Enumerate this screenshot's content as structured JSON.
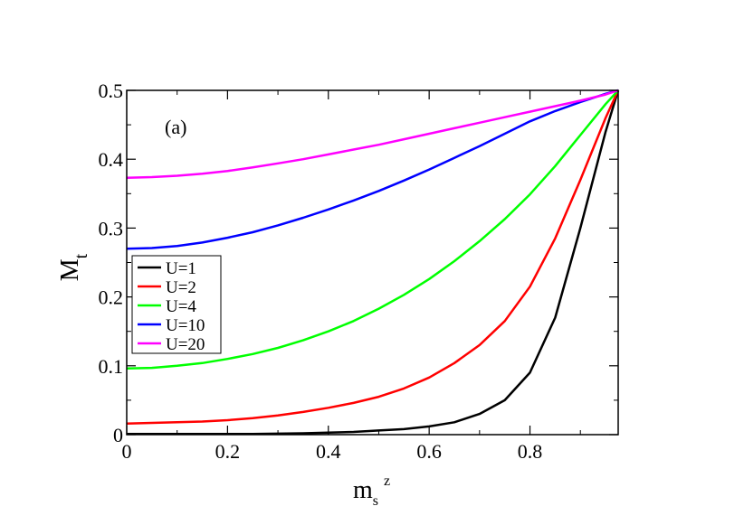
{
  "chart_data": {
    "type": "line",
    "annotation": "(a)",
    "xlabel": {
      "main": "m",
      "sub": "s",
      "sup": "z"
    },
    "ylabel": {
      "main": "M",
      "sub": "t"
    },
    "xlim": [
      0,
      0.975
    ],
    "ylim": [
      0,
      0.5
    ],
    "xticks": [
      0,
      0.2,
      0.4,
      0.6,
      0.8
    ],
    "xtick_labels": [
      "0",
      "0.2",
      "0.4",
      "0.6",
      "0.8"
    ],
    "yticks": [
      0,
      0.1,
      0.2,
      0.3,
      0.4,
      0.5
    ],
    "ytick_labels": [
      "0",
      "0.1",
      "0.2",
      "0.3",
      "0.4",
      "0.5"
    ],
    "grid": false,
    "legend_position": "middle-left",
    "x": [
      0,
      0.05,
      0.1,
      0.15,
      0.2,
      0.25,
      0.3,
      0.35,
      0.4,
      0.45,
      0.5,
      0.55,
      0.6,
      0.65,
      0.7,
      0.75,
      0.8,
      0.85,
      0.9,
      0.95,
      0.975
    ],
    "series": [
      {
        "name": "U=1",
        "color": "#000000",
        "values": [
          0.001,
          0.001,
          0.001,
          0.001,
          0.001,
          0.001,
          0.0015,
          0.002,
          0.003,
          0.004,
          0.006,
          0.008,
          0.012,
          0.018,
          0.03,
          0.05,
          0.09,
          0.17,
          0.3,
          0.44,
          0.5
        ]
      },
      {
        "name": "U=2",
        "color": "#ff0000",
        "values": [
          0.016,
          0.017,
          0.018,
          0.019,
          0.021,
          0.024,
          0.028,
          0.033,
          0.039,
          0.046,
          0.055,
          0.067,
          0.083,
          0.104,
          0.13,
          0.165,
          0.215,
          0.285,
          0.37,
          0.46,
          0.5
        ]
      },
      {
        "name": "U=4",
        "color": "#00ff00",
        "values": [
          0.096,
          0.097,
          0.1,
          0.104,
          0.11,
          0.117,
          0.126,
          0.137,
          0.15,
          0.165,
          0.183,
          0.203,
          0.226,
          0.252,
          0.281,
          0.313,
          0.349,
          0.39,
          0.435,
          0.48,
          0.5
        ]
      },
      {
        "name": "U=10",
        "color": "#0000ff",
        "values": [
          0.27,
          0.271,
          0.274,
          0.279,
          0.286,
          0.294,
          0.304,
          0.315,
          0.327,
          0.34,
          0.354,
          0.369,
          0.385,
          0.402,
          0.419,
          0.437,
          0.455,
          0.47,
          0.483,
          0.495,
          0.5
        ]
      },
      {
        "name": "U=20",
        "color": "#ff00ff",
        "values": [
          0.373,
          0.374,
          0.376,
          0.379,
          0.383,
          0.388,
          0.394,
          0.4,
          0.407,
          0.414,
          0.421,
          0.429,
          0.437,
          0.445,
          0.453,
          0.461,
          0.469,
          0.477,
          0.485,
          0.494,
          0.5
        ]
      }
    ]
  }
}
